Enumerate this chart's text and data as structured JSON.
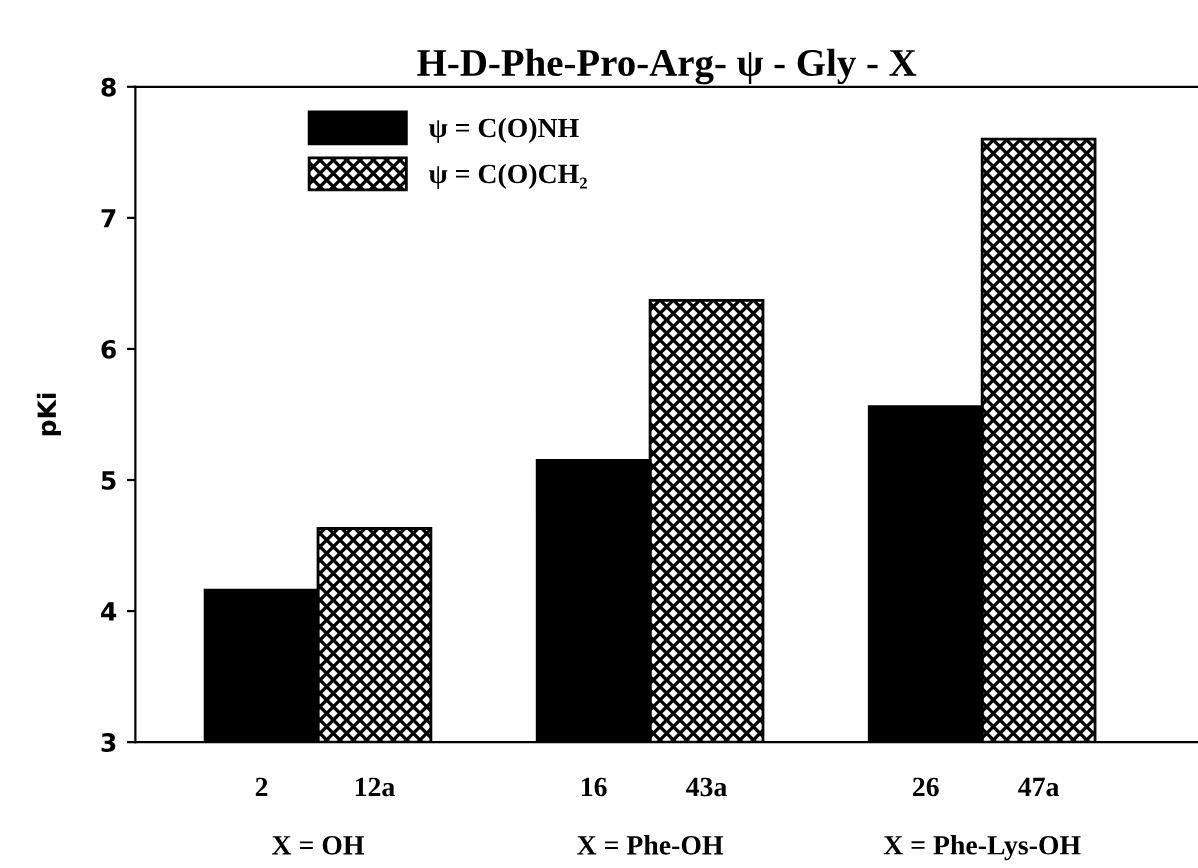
{
  "chart_data": {
    "type": "bar",
    "title": "H-D-Phe-Pro-Arg- ψ - Gly - X",
    "ylabel": "pKi",
    "categories": [
      "X = OH",
      "X = Phe-OH",
      "X = Phe-Lys-OH"
    ],
    "series": [
      {
        "name": "ψ = C(O)NH",
        "color": "#000000",
        "values": [
          4.16,
          5.15,
          5.56
        ]
      },
      {
        "name": "ψ = C(O)CH₂",
        "color": "#000000",
        "values": [
          4.63,
          6.37,
          7.6
        ]
      }
    ],
    "annotations": [
      "2",
      "12a",
      "16",
      "43a",
      "26",
      "47a"
    ],
    "ylim": [
      3,
      8
    ],
    "yticks": [
      3,
      4,
      5,
      6,
      7,
      8
    ],
    "grid": false,
    "legend": "top left"
  }
}
